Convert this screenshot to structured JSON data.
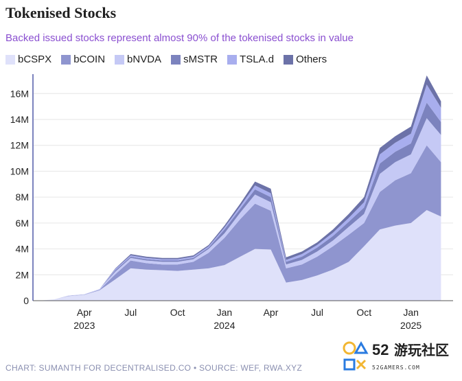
{
  "title": "Tokenised Stocks",
  "subtitle": "Backed issued stocks represent almost 90% of the tokenised stocks in value",
  "source": "CHART: SUMANTH FOR DECENTRALISED.CO • SOURCE: WEF, RWA.XYZ",
  "watermark": {
    "number": "52",
    "name": "游玩社区",
    "domain": "52GAMERS.COM"
  },
  "chart_data": {
    "type": "area",
    "stacked": true,
    "x": [
      "2023-01-01",
      "2023-02-01",
      "2023-03-01",
      "2023-04-01",
      "2023-05-01",
      "2023-06-01",
      "2023-07-01",
      "2023-08-01",
      "2023-09-01",
      "2023-10-01",
      "2023-11-01",
      "2023-12-01",
      "2024-01-01",
      "2024-02-01",
      "2024-03-01",
      "2024-04-01",
      "2024-05-01",
      "2024-06-01",
      "2024-07-01",
      "2024-08-01",
      "2024-09-01",
      "2024-10-01",
      "2024-11-01",
      "2024-12-01",
      "2025-01-01",
      "2025-02-01",
      "2025-03-01"
    ],
    "series": [
      {
        "name": "bCSPX",
        "color": "#dfe1fa",
        "values": [
          0,
          0.1,
          0.35,
          0.45,
          0.8,
          1.65,
          2.5,
          2.4,
          2.35,
          2.3,
          2.4,
          2.5,
          2.75,
          3.4,
          4.0,
          3.95,
          1.4,
          1.6,
          1.95,
          2.4,
          3.0,
          4.2,
          5.5,
          5.8,
          6.0,
          7.0,
          6.5
        ]
      },
      {
        "name": "bCOIN",
        "color": "#8f95cf",
        "values": [
          0,
          0,
          0.02,
          0.02,
          0.05,
          0.4,
          0.6,
          0.5,
          0.45,
          0.5,
          0.6,
          1.2,
          2.1,
          2.9,
          3.5,
          3.0,
          1.1,
          1.2,
          1.45,
          1.8,
          2.1,
          1.8,
          2.9,
          3.5,
          3.85,
          5.0,
          4.2
        ]
      },
      {
        "name": "bNVDA",
        "color": "#c5c9f5",
        "values": [
          0,
          0,
          0.03,
          0.03,
          0.05,
          0.2,
          0.2,
          0.2,
          0.2,
          0.2,
          0.2,
          0.3,
          0.35,
          0.5,
          0.7,
          0.65,
          0.3,
          0.35,
          0.4,
          0.45,
          0.6,
          0.7,
          1.4,
          1.4,
          1.45,
          2.1,
          2.1
        ]
      },
      {
        "name": "sMSTR",
        "color": "#7c83be",
        "values": [
          0,
          0,
          0,
          0,
          0,
          0.1,
          0.1,
          0.1,
          0.1,
          0.1,
          0.1,
          0.1,
          0.3,
          0.3,
          0.4,
          0.4,
          0.2,
          0.25,
          0.3,
          0.35,
          0.4,
          0.5,
          0.8,
          0.8,
          0.85,
          1.2,
          1.0
        ]
      },
      {
        "name": "TSLA.d",
        "color": "#a8aeee",
        "values": [
          0,
          0,
          0,
          0,
          0,
          0.1,
          0.1,
          0.1,
          0.1,
          0.1,
          0.1,
          0.1,
          0.15,
          0.2,
          0.3,
          0.3,
          0.15,
          0.2,
          0.2,
          0.25,
          0.3,
          0.4,
          0.7,
          0.7,
          0.75,
          1.4,
          1.1
        ]
      },
      {
        "name": "Others",
        "color": "#6c72a8",
        "values": [
          0,
          0,
          0,
          0,
          0,
          0.05,
          0.1,
          0.1,
          0.1,
          0.1,
          0.1,
          0.1,
          0.15,
          0.2,
          0.3,
          0.35,
          0.2,
          0.2,
          0.2,
          0.25,
          0.3,
          0.4,
          0.5,
          0.5,
          0.55,
          0.7,
          0.5
        ]
      }
    ],
    "ylim": [
      0,
      17500000
    ],
    "yticks": [
      0,
      2000000,
      4000000,
      6000000,
      8000000,
      10000000,
      12000000,
      14000000,
      16000000
    ],
    "ytick_labels": [
      "0",
      "2M",
      "4M",
      "6M",
      "8M",
      "10M",
      "12M",
      "14M",
      "16M"
    ],
    "xticks": [
      {
        "date": "2023-04-01",
        "label": "Apr",
        "year": "2023"
      },
      {
        "date": "2023-07-01",
        "label": "Jul",
        "year": ""
      },
      {
        "date": "2023-10-01",
        "label": "Oct",
        "year": ""
      },
      {
        "date": "2024-01-01",
        "label": "Jan",
        "year": "2024"
      },
      {
        "date": "2024-04-01",
        "label": "Apr",
        "year": ""
      },
      {
        "date": "2024-07-01",
        "label": "Jul",
        "year": ""
      },
      {
        "date": "2024-10-01",
        "label": "Oct",
        "year": ""
      },
      {
        "date": "2025-01-01",
        "label": "Jan",
        "year": "2025"
      }
    ],
    "grid": "horizontal",
    "legend_position": "top-left",
    "xlabel": "",
    "ylabel": ""
  }
}
